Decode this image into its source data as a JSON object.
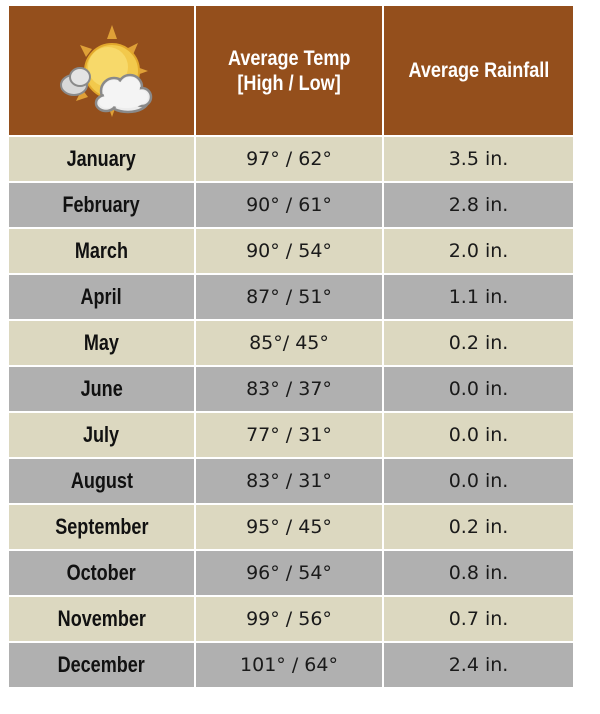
{
  "header": {
    "icon": "partly-cloudy-sun-icon",
    "col_temp_line1": "Average Temp",
    "col_temp_line2": "[High / Low]",
    "col_rain": "Average Rainfall"
  },
  "colors": {
    "header_bg": "#944f1c",
    "row_odd_bg": "#dcd8c0",
    "row_even_bg": "#b0b0b0"
  },
  "rows": [
    {
      "month": "January",
      "temp": "97° / 62°",
      "rain": "3.5 in."
    },
    {
      "month": "February",
      "temp": "90° / 61°",
      "rain": "2.8 in."
    },
    {
      "month": "March",
      "temp": "90° / 54°",
      "rain": "2.0 in."
    },
    {
      "month": "April",
      "temp": "87° / 51°",
      "rain": "1.1 in."
    },
    {
      "month": "May",
      "temp": "85°/ 45°",
      "rain": "0.2 in."
    },
    {
      "month": "June",
      "temp": "83° / 37°",
      "rain": "0.0 in."
    },
    {
      "month": "July",
      "temp": "77° / 31°",
      "rain": "0.0 in."
    },
    {
      "month": "August",
      "temp": "83° / 31°",
      "rain": "0.0 in."
    },
    {
      "month": "September",
      "temp": "95° / 45°",
      "rain": "0.2 in."
    },
    {
      "month": "October",
      "temp": "96° / 54°",
      "rain": "0.8 in."
    },
    {
      "month": "November",
      "temp": "99° / 56°",
      "rain": "0.7 in."
    },
    {
      "month": "December",
      "temp": "101° / 64°",
      "rain": "2.4 in."
    }
  ]
}
